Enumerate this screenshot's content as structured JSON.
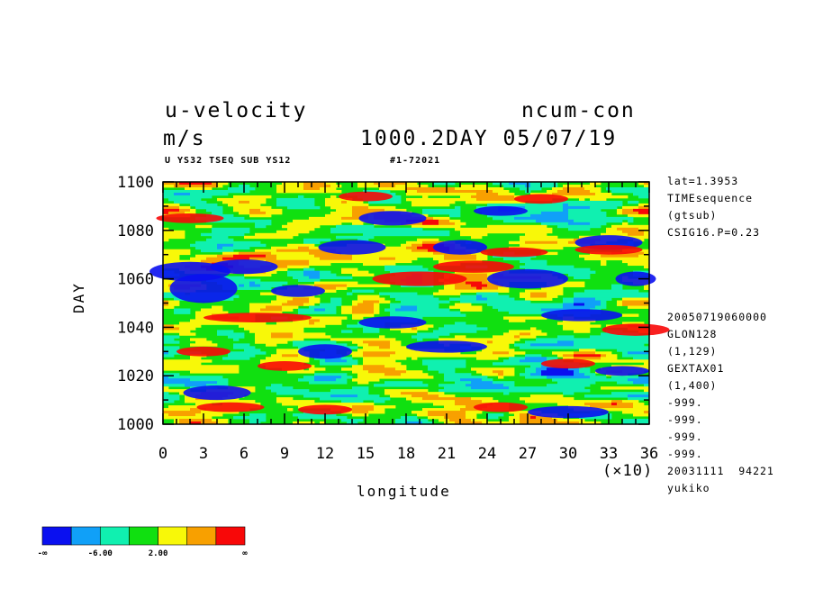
{
  "header": {
    "title_left": "u-velocity",
    "title_right": "ncum-con",
    "units": "m/s",
    "day_date": "1000.2DAY 05/07/19",
    "subtitle_left": "U YS32 TSEQ SUB YS12",
    "subtitle_right": "#1-72021"
  },
  "side_info": {
    "top": [
      "lat=1.3953",
      "TIMEsequence",
      "(gtsub)",
      "CSIG16.P=0.23"
    ],
    "bottom": [
      "20050719060000",
      "GLON128",
      "(1,129)",
      "GEXTAX01",
      "(1,400)",
      "-999.",
      "-999.",
      "-999.",
      "-999.",
      "20031111  94221",
      "yukiko"
    ]
  },
  "chart_data": {
    "type": "heatmap",
    "title": "u-velocity",
    "xlabel": "longitude",
    "ylabel": "DAY",
    "x_scale_note": "(×10)",
    "xlim": [
      0,
      36
    ],
    "ylim": [
      1000,
      1100
    ],
    "x_ticks": [
      "0",
      "3",
      "6",
      "9",
      "12",
      "15",
      "18",
      "21",
      "24",
      "27",
      "30",
      "33",
      "36"
    ],
    "y_ticks": [
      "1000",
      "1020",
      "1040",
      "1060",
      "1080",
      "1100"
    ],
    "colorbar": {
      "colors": [
        "#0a10f0",
        "#10a0f8",
        "#10f0b0",
        "#10e010",
        "#f8f808",
        "#f8a000",
        "#f80808"
      ],
      "labels": [
        "-∞",
        "-6.00",
        "2.00",
        "∞"
      ]
    },
    "blobs": [
      {
        "x": 3,
        "y": 1056,
        "rx": 2.5,
        "ry": 6,
        "level": 0
      },
      {
        "x": 2,
        "y": 1063,
        "rx": 3,
        "ry": 4,
        "level": 0
      },
      {
        "x": 6,
        "y": 1065,
        "rx": 2.5,
        "ry": 3,
        "level": 0
      },
      {
        "x": 10,
        "y": 1055,
        "rx": 2,
        "ry": 2.5,
        "level": 0
      },
      {
        "x": 14,
        "y": 1073,
        "rx": 2.5,
        "ry": 3,
        "level": 0
      },
      {
        "x": 17,
        "y": 1085,
        "rx": 2.5,
        "ry": 3,
        "level": 0
      },
      {
        "x": 22,
        "y": 1073,
        "rx": 2,
        "ry": 3,
        "level": 0
      },
      {
        "x": 27,
        "y": 1060,
        "rx": 3,
        "ry": 4,
        "level": 0
      },
      {
        "x": 31,
        "y": 1045,
        "rx": 3,
        "ry": 2.5,
        "level": 0
      },
      {
        "x": 21,
        "y": 1032,
        "rx": 3,
        "ry": 2.5,
        "level": 0
      },
      {
        "x": 17,
        "y": 1042,
        "rx": 2.5,
        "ry": 2.5,
        "level": 0
      },
      {
        "x": 30,
        "y": 1005,
        "rx": 3,
        "ry": 2.5,
        "level": 0
      },
      {
        "x": 34,
        "y": 1022,
        "rx": 2,
        "ry": 2,
        "level": 0
      },
      {
        "x": 4,
        "y": 1013,
        "rx": 2.5,
        "ry": 3,
        "level": 0
      },
      {
        "x": 12,
        "y": 1030,
        "rx": 2,
        "ry": 3,
        "level": 0
      },
      {
        "x": 35,
        "y": 1060,
        "rx": 1.5,
        "ry": 3,
        "level": 0
      },
      {
        "x": 33,
        "y": 1075,
        "rx": 2.5,
        "ry": 3,
        "level": 0
      },
      {
        "x": 25,
        "y": 1088,
        "rx": 2,
        "ry": 2,
        "level": 0
      },
      {
        "x": 19,
        "y": 1060,
        "rx": 3.5,
        "ry": 3,
        "level": 6
      },
      {
        "x": 23,
        "y": 1065,
        "rx": 3,
        "ry": 2.5,
        "level": 6
      },
      {
        "x": 7,
        "y": 1044,
        "rx": 4,
        "ry": 2,
        "level": 6
      },
      {
        "x": 26,
        "y": 1071,
        "rx": 2.5,
        "ry": 2,
        "level": 6
      },
      {
        "x": 33,
        "y": 1072,
        "rx": 2.5,
        "ry": 2,
        "level": 6
      },
      {
        "x": 35,
        "y": 1039,
        "rx": 2.5,
        "ry": 2.5,
        "level": 6
      },
      {
        "x": 5,
        "y": 1007,
        "rx": 2.5,
        "ry": 2,
        "level": 6
      },
      {
        "x": 12,
        "y": 1006,
        "rx": 2,
        "ry": 2,
        "level": 6
      },
      {
        "x": 25,
        "y": 1007,
        "rx": 2,
        "ry": 2,
        "level": 6
      },
      {
        "x": 2,
        "y": 1085,
        "rx": 2.5,
        "ry": 2,
        "level": 6
      },
      {
        "x": 15,
        "y": 1094,
        "rx": 2,
        "ry": 2,
        "level": 6
      },
      {
        "x": 28,
        "y": 1093,
        "rx": 2,
        "ry": 2,
        "level": 6
      },
      {
        "x": 9,
        "y": 1024,
        "rx": 2,
        "ry": 2,
        "level": 6
      },
      {
        "x": 30,
        "y": 1025,
        "rx": 2,
        "ry": 2,
        "level": 6
      },
      {
        "x": 3,
        "y": 1030,
        "rx": 2,
        "ry": 2,
        "level": 6
      }
    ]
  }
}
